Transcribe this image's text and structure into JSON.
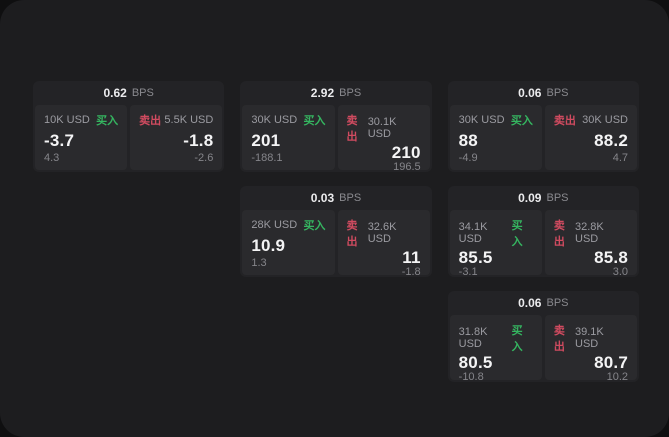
{
  "colors": {
    "buy_green": "#35b560",
    "sell_red": "#d14b60",
    "panel_bg": "#1d1d1f",
    "card_bg": "#232326",
    "subpanel_bg": "#2a2a2d"
  },
  "labels": {
    "bps_unit": "BPS",
    "buy": "买入",
    "sell": "卖出"
  },
  "cards": [
    {
      "bps": "0.62",
      "buy": {
        "amount": "10K USD",
        "price": "-3.7",
        "delta": "4.3"
      },
      "sell": {
        "amount": "5.5K USD",
        "price": "-1.8",
        "delta": "-2.6"
      }
    },
    {
      "bps": "2.92",
      "buy": {
        "amount": "30K USD",
        "price": "201",
        "delta": "-188.1"
      },
      "sell": {
        "amount": "30.1K USD",
        "price": "210",
        "delta": "196.5"
      }
    },
    {
      "bps": "0.06",
      "buy": {
        "amount": "30K USD",
        "price": "88",
        "delta": "-4.9"
      },
      "sell": {
        "amount": "30K USD",
        "price": "88.2",
        "delta": "4.7"
      }
    },
    {
      "bps": "0.03",
      "buy": {
        "amount": "28K USD",
        "price": "10.9",
        "delta": "1.3"
      },
      "sell": {
        "amount": "32.6K USD",
        "price": "11",
        "delta": "-1.8"
      }
    },
    {
      "bps": "0.09",
      "buy": {
        "amount": "34.1K USD",
        "price": "85.5",
        "delta": "-3.1"
      },
      "sell": {
        "amount": "32.8K USD",
        "price": "85.8",
        "delta": "3.0"
      }
    },
    {
      "bps": "0.06",
      "buy": {
        "amount": "31.8K USD",
        "price": "80.5",
        "delta": "-10.8"
      },
      "sell": {
        "amount": "39.1K USD",
        "price": "80.7",
        "delta": "10.2"
      }
    }
  ]
}
